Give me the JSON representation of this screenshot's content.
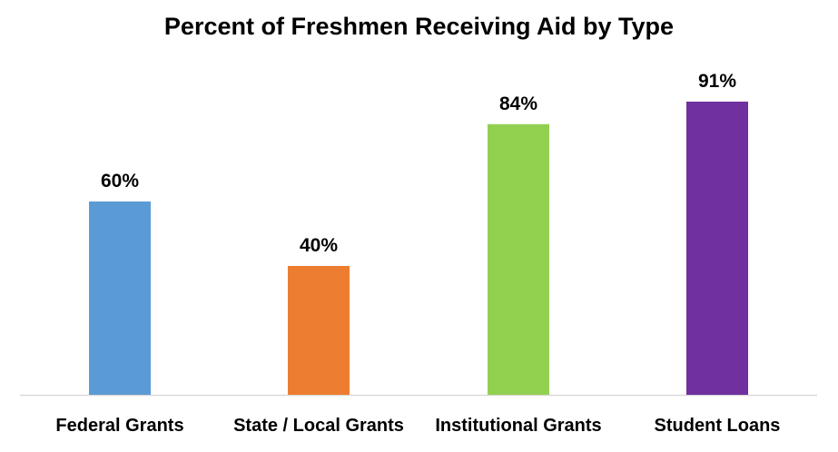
{
  "chart_data": {
    "type": "bar",
    "title": "Percent of Freshmen Receiving Aid by Type",
    "categories": [
      "Federal Grants",
      "State / Local Grants",
      "Institutional Grants",
      "Student Loans"
    ],
    "values": [
      60,
      40,
      84,
      91
    ],
    "data_labels": [
      "60%",
      "40%",
      "84%",
      "91%"
    ],
    "colors": [
      "#5b9bd5",
      "#ed7d31",
      "#92d050",
      "#7030a0"
    ],
    "ylim": [
      0,
      100
    ],
    "xlabel": "",
    "ylabel": "",
    "grid": false,
    "legend": "none"
  }
}
